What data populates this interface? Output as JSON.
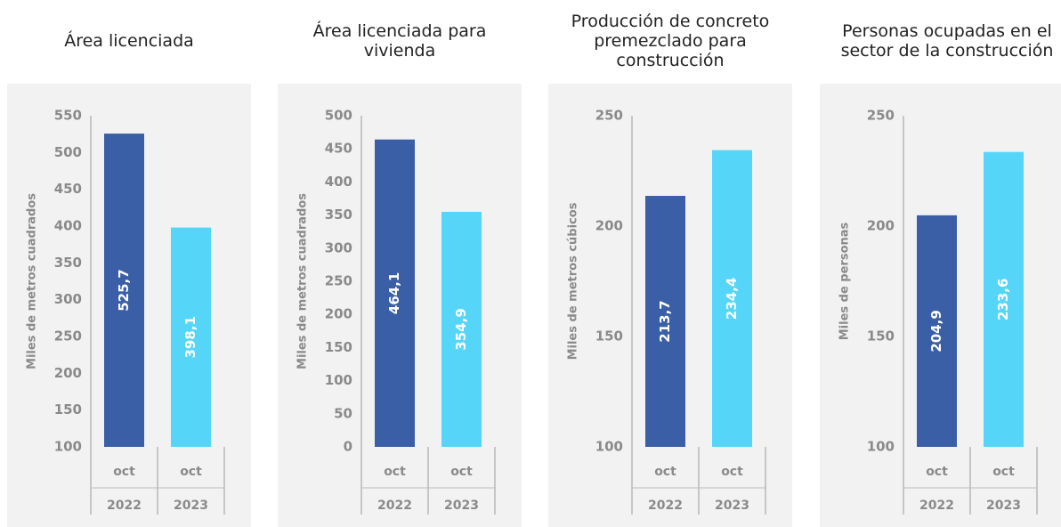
{
  "chart_data": [
    {
      "type": "bar",
      "title": "Área licenciada",
      "y_label": "Miles de metros cuadrados",
      "categories": [
        "oct",
        "oct"
      ],
      "years": [
        "2022",
        "2023"
      ],
      "values": [
        525.7,
        398.1
      ],
      "value_labels": [
        "525,7",
        "398,1"
      ],
      "colors": [
        "#3a5fa6",
        "#55d6f9"
      ],
      "ylim": [
        100,
        550
      ],
      "yticks": [
        100,
        150,
        200,
        250,
        300,
        350,
        400,
        450,
        500,
        550
      ]
    },
    {
      "type": "bar",
      "title": "Área licenciada para vivienda",
      "y_label": "Miles de metros cuadrados",
      "categories": [
        "oct",
        "oct"
      ],
      "years": [
        "2022",
        "2023"
      ],
      "values": [
        464.1,
        354.9
      ],
      "value_labels": [
        "464,1",
        "354,9"
      ],
      "colors": [
        "#3a5fa6",
        "#55d6f9"
      ],
      "ylim": [
        0,
        500
      ],
      "yticks": [
        0,
        50,
        100,
        150,
        200,
        250,
        300,
        350,
        400,
        450,
        500
      ]
    },
    {
      "type": "bar",
      "title": "Producción de concreto premezclado para construcción",
      "y_label": "Miles de metros cúbicos",
      "categories": [
        "oct",
        "oct"
      ],
      "years": [
        "2022",
        "2023"
      ],
      "values": [
        213.7,
        234.4
      ],
      "value_labels": [
        "213,7",
        "234,4"
      ],
      "colors": [
        "#3a5fa6",
        "#55d6f9"
      ],
      "ylim": [
        100,
        250
      ],
      "yticks": [
        100,
        150,
        200,
        250
      ]
    },
    {
      "type": "bar",
      "title": "Personas ocupadas en el sector de la construcción",
      "y_label": "Miles de personas",
      "categories": [
        "oct",
        "oct"
      ],
      "years": [
        "2022",
        "2023"
      ],
      "values": [
        204.9,
        233.6
      ],
      "value_labels": [
        "204,9",
        "233,6"
      ],
      "colors": [
        "#3a5fa6",
        "#55d6f9"
      ],
      "ylim": [
        100,
        250
      ],
      "yticks": [
        100,
        150,
        200,
        250
      ]
    }
  ]
}
